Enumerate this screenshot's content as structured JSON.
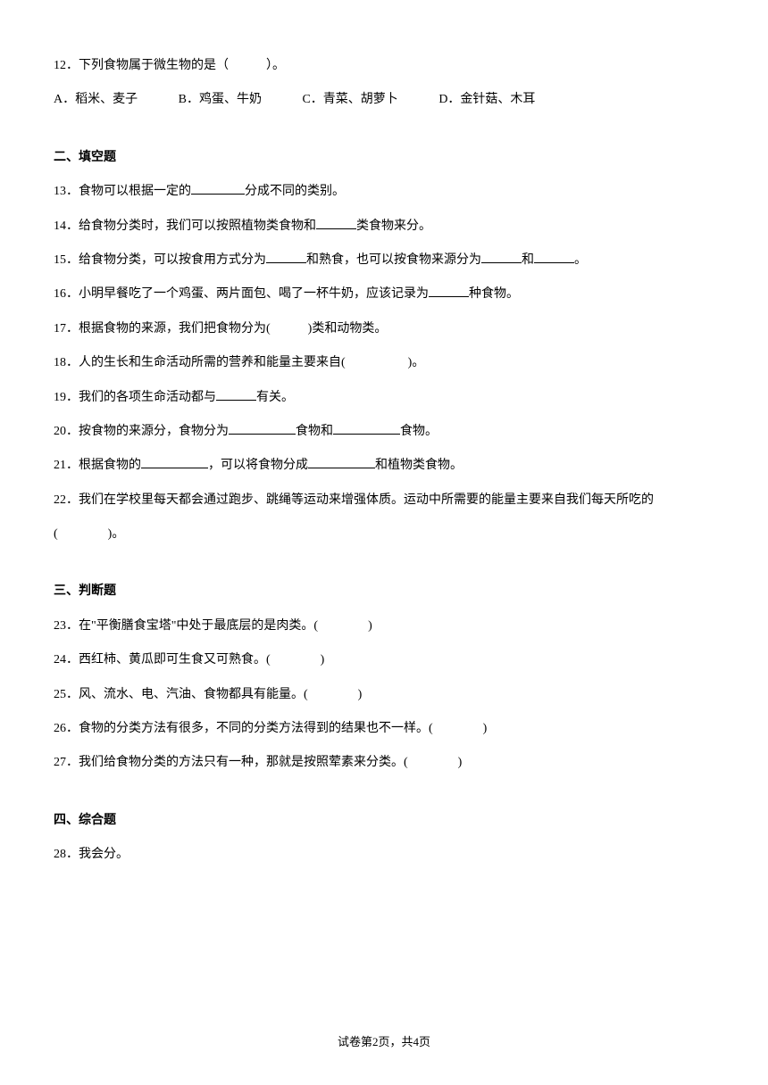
{
  "q12": {
    "text": "12．下列食物属于微生物的是（　　　）。",
    "options": {
      "a": "A．稻米、麦子",
      "b": "B．鸡蛋、牛奶",
      "c": "C．青菜、胡萝卜",
      "d": "D．金针菇、木耳"
    }
  },
  "section2": {
    "header": "二、填空题",
    "q13_pre": "13．食物可以根据一定的",
    "q13_post": "分成不同的类别。",
    "q14_pre": "14．给食物分类时，我们可以按照植物类食物和",
    "q14_post": "类食物来分。",
    "q15_pre": "15．给食物分类，可以按食用方式分为",
    "q15_mid": "和熟食，也可以按食物来源分为",
    "q15_mid2": "和",
    "q15_post": "。",
    "q16_pre": "16．小明早餐吃了一个鸡蛋、两片面包、喝了一杯牛奶，应该记录为",
    "q16_post": "种食物。",
    "q17": "17．根据食物的来源，我们把食物分为(　　　)类和动物类。",
    "q18": "18．人的生长和生命活动所需的营养和能量主要来自(　　　　　)。",
    "q19_pre": "19．我们的各项生命活动都与",
    "q19_post": "有关。",
    "q20_pre": "20．按食物的来源分，食物分为",
    "q20_mid": "食物和",
    "q20_post": "食物。",
    "q21_pre": "21．根据食物的",
    "q21_mid": "，可以将食物分成",
    "q21_post": "和植物类食物。",
    "q22_line1": "22．我们在学校里每天都会通过跑步、跳绳等运动来增强体质。运动中所需要的能量主要来自我们每天所吃的",
    "q22_line2": "(　　　　)。"
  },
  "section3": {
    "header": "三、判断题",
    "q23": "23．在\"平衡膳食宝塔\"中处于最底层的是肉类。(　　　　)",
    "q24": "24．西红柿、黄瓜即可生食又可熟食。(　　　　)",
    "q25": "25．风、流水、电、汽油、食物都具有能量。(　　　　)",
    "q26": "26．食物的分类方法有很多，不同的分类方法得到的结果也不一样。(　　　　)",
    "q27": "27．我们给食物分类的方法只有一种，那就是按照荤素来分类。(　　　　)"
  },
  "section4": {
    "header": "四、综合题",
    "q28": "28．我会分。"
  },
  "footer": "试卷第2页，共4页"
}
